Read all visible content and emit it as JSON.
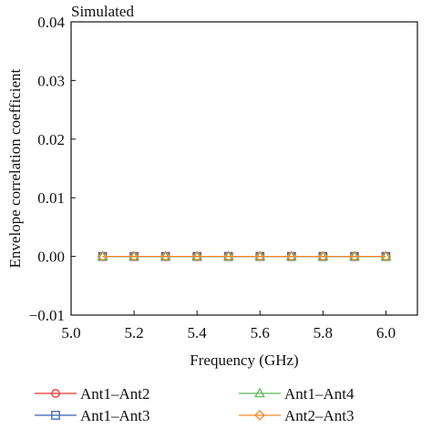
{
  "chart_data": {
    "type": "line",
    "title": "Simulated",
    "xlabel": "Frequency (GHz)",
    "ylabel": "Envelope correlation coefficient",
    "xlim": [
      5.0,
      6.1
    ],
    "ylim": [
      -0.01,
      0.04
    ],
    "xticks": [
      5.0,
      5.2,
      5.4,
      5.6,
      5.8,
      6.0
    ],
    "xtick_labels": [
      "5.0",
      "5.2",
      "5.4",
      "5.6",
      "5.8",
      "6.0"
    ],
    "yticks": [
      -0.01,
      0.0,
      0.01,
      0.02,
      0.03,
      0.04
    ],
    "ytick_labels": [
      "−0.01",
      "0.00",
      "0.01",
      "0.02",
      "0.03",
      "0.04"
    ],
    "grid": false,
    "legend_placement": "bottom",
    "x": [
      5.1,
      5.2,
      5.3,
      5.4,
      5.5,
      5.6,
      5.7,
      5.8,
      5.9,
      6.0
    ],
    "series": [
      {
        "name": "Ant1–Ant2",
        "color": "#e8312f",
        "marker": "circle",
        "values": [
          0.0,
          0.0,
          0.0,
          0.0,
          0.0,
          0.0,
          0.0,
          0.0,
          0.0,
          0.0
        ]
      },
      {
        "name": "Ant1–Ant3",
        "color": "#3b5fb5",
        "marker": "square",
        "values": [
          0.0,
          0.0,
          0.0,
          0.0,
          0.0,
          0.0,
          0.0,
          0.0,
          0.0,
          0.0
        ]
      },
      {
        "name": "Ant1–Ant4",
        "color": "#5cb85c",
        "marker": "triangle",
        "values": [
          0.0,
          0.0,
          0.0,
          0.0,
          0.0,
          0.0,
          0.0,
          0.0,
          0.0,
          0.0
        ]
      },
      {
        "name": "Ant2–Ant3",
        "color": "#f0892c",
        "marker": "diamond",
        "values": [
          0.0,
          0.0,
          0.0,
          0.0,
          0.0,
          0.0,
          0.0,
          0.0,
          0.0,
          0.0
        ]
      }
    ]
  }
}
